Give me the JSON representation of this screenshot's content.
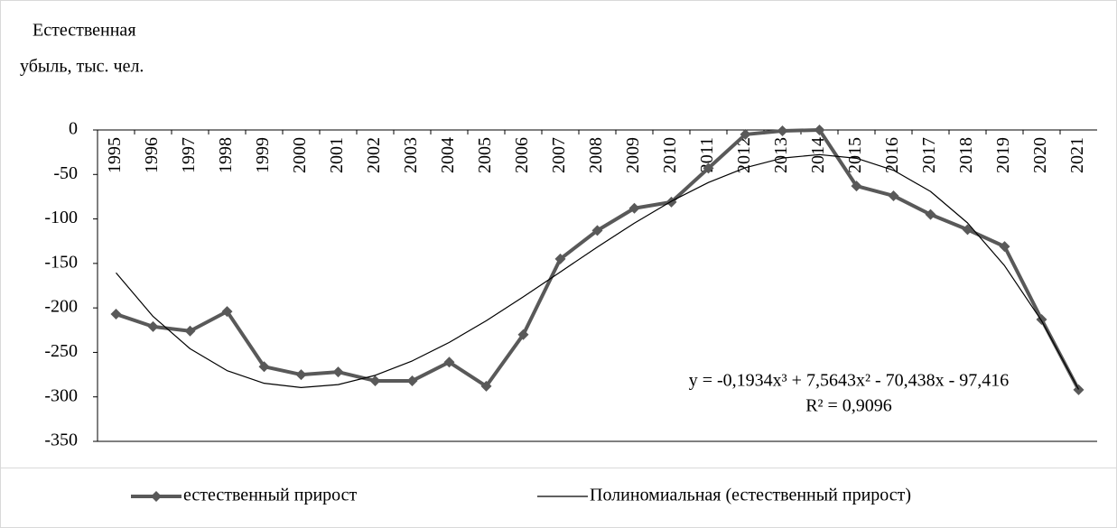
{
  "chart_data": {
    "type": "line",
    "y_label": [
      "Естественная",
      "убыль, тыс. чел."
    ],
    "categories": [
      "1995",
      "1996",
      "1997",
      "1998",
      "1999",
      "2000",
      "2001",
      "2002",
      "2003",
      "2004",
      "2005",
      "2006",
      "2007",
      "2008",
      "2009",
      "2010",
      "2011",
      "2012",
      "2013",
      "2014",
      "2015",
      "2016",
      "2017",
      "2018",
      "2019",
      "2020",
      "2021"
    ],
    "series": [
      {
        "name": "естественный прирост",
        "color": "#595959",
        "marker": "diamond",
        "values": [
          -207,
          -221,
          -226,
          -204,
          -266,
          -275,
          -272,
          -282,
          -282,
          -261,
          -288,
          -230,
          -145,
          -113,
          -88,
          -81,
          -43,
          -5,
          -1,
          0,
          -63,
          -74,
          -95,
          -112,
          -131,
          -213,
          -292
        ]
      },
      {
        "name": "Полиномиальная (естественный прирост)",
        "color": "#000000",
        "values": [
          -160.5,
          -209.6,
          -245.9,
          -270.5,
          -284.7,
          -289.5,
          -286.2,
          -275.8,
          -259.6,
          -238.8,
          -214.4,
          -187.6,
          -159.6,
          -131.6,
          -104.7,
          -80.1,
          -59.0,
          -42.4,
          -31.6,
          -27.7,
          -31.8,
          -45.3,
          -69.1,
          -104.5,
          -152.6,
          -214.5,
          -291.6
        ]
      }
    ],
    "annotations": [
      "y = -0,1934x³ + 7,5643x² - 70,438x - 97,416",
      "R² = 0,9096"
    ],
    "ylim": [
      -350,
      0
    ],
    "yticks": [
      0,
      -50,
      -100,
      -150,
      -200,
      -250,
      -300,
      -350
    ],
    "legend": "bottom"
  }
}
